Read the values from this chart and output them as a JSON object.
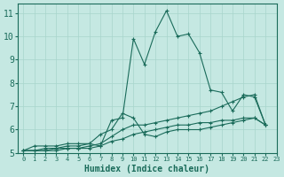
{
  "title": "",
  "xlabel": "Humidex (Indice chaleur)",
  "xlim": [
    -0.5,
    23
  ],
  "ylim": [
    5,
    11.4
  ],
  "yticks": [
    5,
    6,
    7,
    8,
    9,
    10,
    11
  ],
  "xticks": [
    0,
    1,
    2,
    3,
    4,
    5,
    6,
    7,
    8,
    9,
    10,
    11,
    12,
    13,
    14,
    15,
    16,
    17,
    18,
    19,
    20,
    21,
    22,
    23
  ],
  "bg_color": "#c5e8e2",
  "line_color": "#1a6b5a",
  "grid_color": "#a8d5cc",
  "series": [
    [
      5.1,
      5.3,
      5.3,
      5.3,
      5.4,
      5.4,
      5.4,
      5.3,
      6.4,
      6.5,
      9.9,
      8.8,
      10.2,
      11.1,
      10.0,
      10.1,
      9.3,
      7.7,
      7.6,
      6.8,
      7.5,
      7.4,
      6.2
    ],
    [
      5.1,
      5.1,
      5.1,
      5.2,
      5.2,
      5.2,
      5.3,
      5.4,
      5.7,
      6.0,
      6.2,
      6.2,
      6.3,
      6.4,
      6.5,
      6.6,
      6.7,
      6.8,
      7.0,
      7.2,
      7.4,
      7.5,
      6.2
    ],
    [
      5.1,
      5.1,
      5.1,
      5.1,
      5.2,
      5.2,
      5.2,
      5.3,
      5.5,
      5.6,
      5.8,
      5.9,
      6.0,
      6.1,
      6.2,
      6.2,
      6.3,
      6.3,
      6.4,
      6.4,
      6.5,
      6.5,
      6.2
    ],
    [
      5.1,
      5.1,
      5.2,
      5.2,
      5.3,
      5.3,
      5.4,
      5.8,
      6.0,
      6.7,
      6.5,
      5.8,
      5.7,
      5.9,
      6.0,
      6.0,
      6.0,
      6.1,
      6.2,
      6.3,
      6.4,
      6.5,
      6.2
    ]
  ],
  "xlabel_fontsize": 7,
  "ytick_fontsize": 7,
  "xtick_fontsize": 5
}
